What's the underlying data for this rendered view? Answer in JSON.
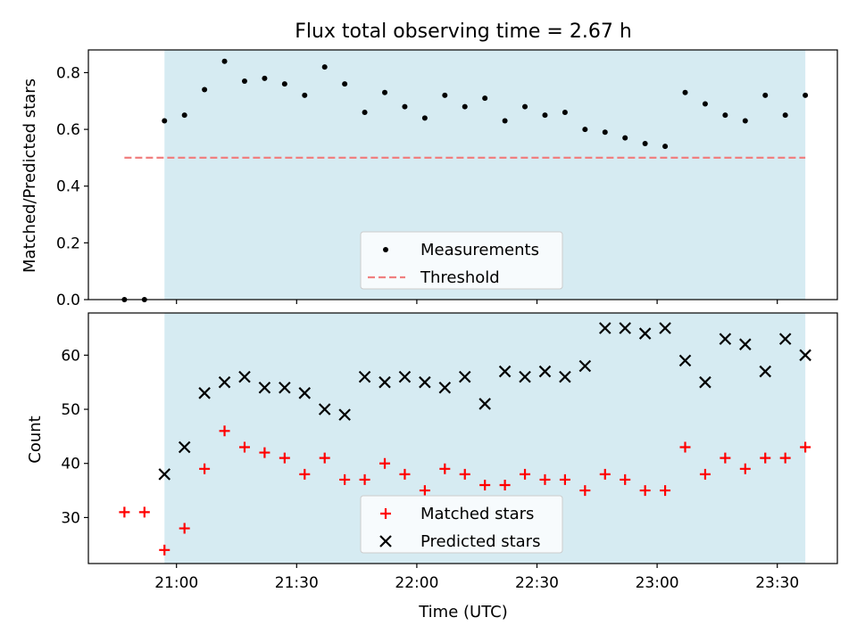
{
  "figure": {
    "title": "Flux total observing time = 2.67 h",
    "xlabel": "Time (UTC)"
  },
  "colors": {
    "shade": "#add8e6",
    "threshold": "#f08080",
    "matched": "#ff0000",
    "predicted": "#000000",
    "measurement": "#000000"
  },
  "chart_data": [
    {
      "type": "scatter",
      "ylabel": "Matched/Predicted stars",
      "ylim": [
        0,
        0.88
      ],
      "yticks": [
        "0.0",
        "0.2",
        "0.4",
        "0.6",
        "0.8"
      ],
      "xlim": [
        "20:38",
        "23:45"
      ],
      "shaded_region": [
        "20:57",
        "23:37"
      ],
      "legend": {
        "position": "lower center",
        "entries": [
          "Measurements",
          "Threshold"
        ]
      },
      "series": [
        {
          "name": "Measurements",
          "marker": "dot",
          "x": [
            "20:47",
            "20:52",
            "20:57",
            "21:02",
            "21:07",
            "21:12",
            "21:17",
            "21:22",
            "21:27",
            "21:32",
            "21:37",
            "21:42",
            "21:47",
            "21:52",
            "21:57",
            "22:02",
            "22:07",
            "22:12",
            "22:17",
            "22:22",
            "22:27",
            "22:32",
            "22:37",
            "22:42",
            "22:47",
            "22:52",
            "22:57",
            "23:02",
            "23:07",
            "23:12",
            "23:17",
            "23:22",
            "23:27",
            "23:32",
            "23:37"
          ],
          "y": [
            0.0,
            0.0,
            0.63,
            0.65,
            0.74,
            0.84,
            0.77,
            0.78,
            0.76,
            0.72,
            0.82,
            0.76,
            0.66,
            0.73,
            0.68,
            0.64,
            0.72,
            0.68,
            0.71,
            0.63,
            0.68,
            0.65,
            0.66,
            0.6,
            0.59,
            0.57,
            0.55,
            0.54,
            0.73,
            0.69,
            0.65,
            0.63,
            0.72,
            0.65,
            0.72
          ]
        },
        {
          "name": "Threshold",
          "style": "dashed",
          "x": [
            "20:47",
            "23:37"
          ],
          "y": [
            0.5,
            0.5
          ]
        }
      ]
    },
    {
      "type": "scatter",
      "ylabel": "Count",
      "ylim": [
        21.5,
        67.8
      ],
      "yticks": [
        "30",
        "40",
        "50",
        "60"
      ],
      "xlim": [
        "20:38",
        "23:45"
      ],
      "xticks": [
        "21:00",
        "21:30",
        "22:00",
        "22:30",
        "23:00",
        "23:30"
      ],
      "shaded_region": [
        "20:57",
        "23:37"
      ],
      "legend": {
        "position": "lower center",
        "entries": [
          "Matched stars",
          "Predicted stars"
        ]
      },
      "series": [
        {
          "name": "Matched stars",
          "marker": "plus",
          "x": [
            "20:47",
            "20:52",
            "20:57",
            "21:02",
            "21:07",
            "21:12",
            "21:17",
            "21:22",
            "21:27",
            "21:32",
            "21:37",
            "21:42",
            "21:47",
            "21:52",
            "21:57",
            "22:02",
            "22:07",
            "22:12",
            "22:17",
            "22:22",
            "22:27",
            "22:32",
            "22:37",
            "22:42",
            "22:47",
            "22:52",
            "22:57",
            "23:02",
            "23:07",
            "23:12",
            "23:17",
            "23:22",
            "23:27",
            "23:32",
            "23:37"
          ],
          "y": [
            31,
            31,
            24,
            28,
            39,
            46,
            43,
            42,
            41,
            38,
            41,
            37,
            37,
            40,
            38,
            35,
            39,
            38,
            36,
            36,
            38,
            37,
            37,
            35,
            38,
            37,
            35,
            35,
            43,
            38,
            41,
            39,
            41,
            41,
            43
          ]
        },
        {
          "name": "Predicted stars",
          "marker": "x",
          "x": [
            "20:57",
            "21:02",
            "21:07",
            "21:12",
            "21:17",
            "21:22",
            "21:27",
            "21:32",
            "21:37",
            "21:42",
            "21:47",
            "21:52",
            "21:57",
            "22:02",
            "22:07",
            "22:12",
            "22:17",
            "22:22",
            "22:27",
            "22:32",
            "22:37",
            "22:42",
            "22:47",
            "22:52",
            "22:57",
            "23:02",
            "23:07",
            "23:12",
            "23:17",
            "23:22",
            "23:27",
            "23:32",
            "23:37"
          ],
          "y": [
            38,
            43,
            53,
            55,
            56,
            54,
            54,
            53,
            50,
            49,
            56,
            55,
            56,
            55,
            54,
            56,
            51,
            57,
            56,
            57,
            56,
            58,
            65,
            65,
            64,
            65,
            59,
            55,
            63,
            62,
            57,
            63,
            60
          ]
        }
      ]
    }
  ]
}
